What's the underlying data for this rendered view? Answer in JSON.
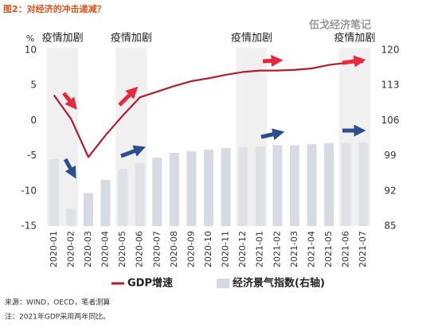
{
  "chart_data": {
    "type": "bar_line",
    "title": "图2：对经济的冲击递减？",
    "watermark": "伍戈经济笔记",
    "y_unit": "%",
    "categories": [
      "2020-01",
      "2020-02",
      "2020-03",
      "2020-04",
      "2020-05",
      "2020-06",
      "2020-07",
      "2020-08",
      "2020-09",
      "2020-10",
      "2020-11",
      "2020-12",
      "2021-01",
      "2021-02",
      "2021-03",
      "2021-04",
      "2021-05",
      "2021-06",
      "2021-07"
    ],
    "series": [
      {
        "name": "GDP增速",
        "type": "line",
        "color": "#b01e2f",
        "axis": "y",
        "values": [
          3.6,
          0.2,
          -5.2,
          -2.1,
          0.7,
          3.3,
          4.1,
          4.9,
          5.6,
          6.0,
          6.5,
          6.9,
          7.1,
          7.1,
          7.2,
          7.4,
          7.9,
          8.2,
          8.3
        ]
      },
      {
        "name": "经济景气指数(右轴)",
        "type": "bar",
        "color": "#d6dae3",
        "axis": "y2",
        "values": [
          98.3,
          88.5,
          91.6,
          94.2,
          96.4,
          97.5,
          98.6,
          99.6,
          99.9,
          100.2,
          100.5,
          100.7,
          100.8,
          101.1,
          101.1,
          101.3,
          101.5,
          101.5,
          101.6
        ]
      }
    ],
    "ylim": [
      -15,
      10
    ],
    "yticks": [
      10,
      5,
      0,
      -5,
      -10,
      -15
    ],
    "y2lim": [
      85,
      120
    ],
    "y2ticks": [
      120,
      113,
      106,
      99,
      92,
      85
    ],
    "annotations": [
      {
        "text": "疫情加剧",
        "from": "2020-01",
        "to": "2020-02"
      },
      {
        "text": "疫情加剧",
        "from": "2020-05",
        "to": "2020-06"
      },
      {
        "text": "疫情加剧",
        "from": "2020-12",
        "to": "2021-01"
      },
      {
        "text": "疫情加剧",
        "from": "2021-06",
        "to": "2021-07"
      }
    ],
    "notes": [
      "来源：WIND，OECD，笔者测算",
      "注：2021年GDP采用两年同比。"
    ]
  }
}
